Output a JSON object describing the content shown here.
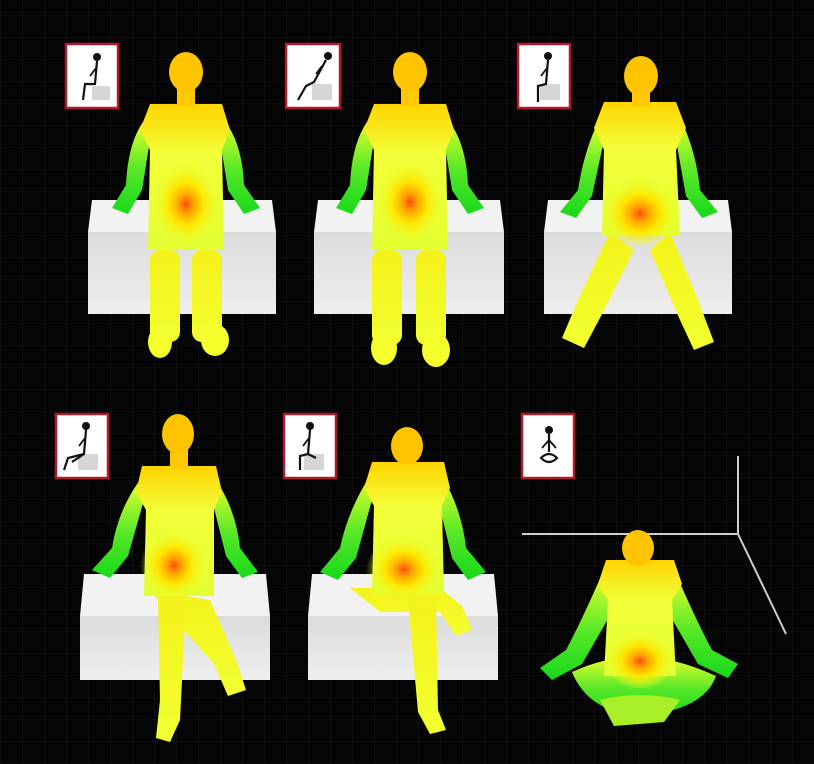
{
  "scene": {
    "background": "#050505",
    "panel_count": 6,
    "heatmap_colors": {
      "cool": "#22dd22",
      "mid": "#eaff2a",
      "warm": "#ffc400",
      "hot": "#ff4a12"
    },
    "seat_color": "#e6e6e6",
    "icon_frame_color": "#b11a2a",
    "panels": [
      {
        "pose": "sitting-upright",
        "icon": "upright-sitting-icon"
      },
      {
        "pose": "sitting-reclined",
        "icon": "reclined-sitting-icon"
      },
      {
        "pose": "sitting-legs-apart",
        "icon": "upright-sitting-icon"
      },
      {
        "pose": "sitting-legs-crossed",
        "icon": "crossed-leg-sitting-icon"
      },
      {
        "pose": "sitting-legs-crossed-over",
        "icon": "crossed-leg-sitting-icon"
      },
      {
        "pose": "cross-legged-floor",
        "icon": "cross-legged-floor-icon"
      }
    ]
  }
}
